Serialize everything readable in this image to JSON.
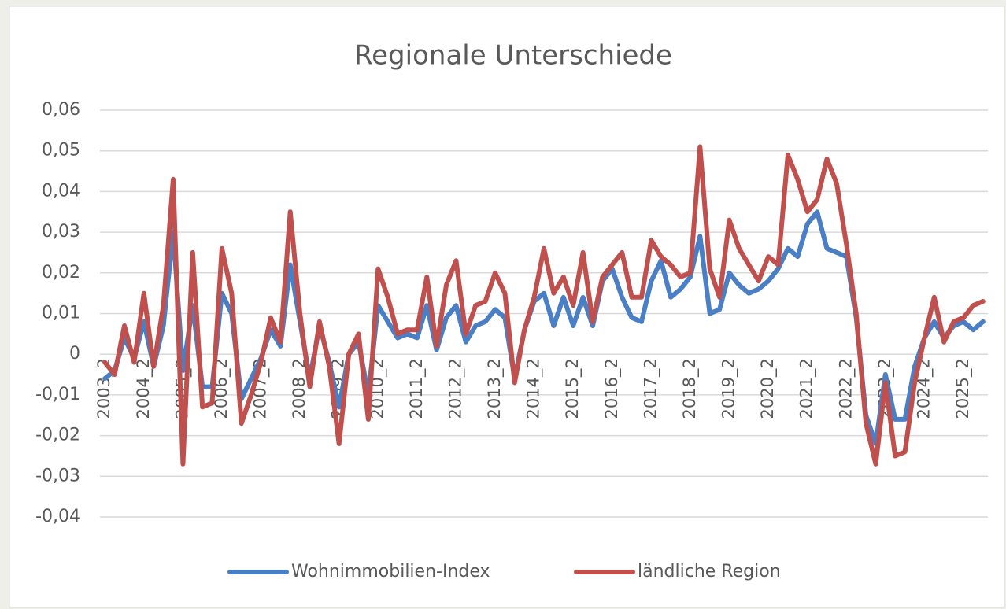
{
  "chart_data": {
    "type": "line",
    "title": "Regionale Unterschiede",
    "categories": [
      "2003_2",
      null,
      null,
      null,
      "2004_2",
      null,
      null,
      null,
      "2005_2",
      null,
      null,
      null,
      "2006_2",
      null,
      null,
      null,
      "2007_2",
      null,
      null,
      null,
      "2008_2",
      null,
      null,
      null,
      "2009_2",
      null,
      null,
      null,
      "2010_2",
      null,
      null,
      null,
      "2011_2",
      null,
      null,
      null,
      "2012_2",
      null,
      null,
      null,
      "2013_2",
      null,
      null,
      null,
      "2014_2",
      null,
      null,
      null,
      "2015_2",
      null,
      null,
      null,
      "2016_2",
      null,
      null,
      null,
      "2017_2",
      null,
      null,
      null,
      "2018_2",
      null,
      null,
      null,
      "2019_2",
      null,
      null,
      null,
      "2020_2",
      null,
      null,
      null,
      "2021_2",
      null,
      null,
      null,
      "2022_2",
      null,
      null,
      null,
      "2023_2",
      null,
      null,
      null,
      "2024_2",
      null,
      null,
      null,
      "2025_2",
      null,
      null
    ],
    "series": [
      {
        "name": "Wohnimmobilien-Index",
        "color": "#4a7fc6",
        "values": [
          -0.006,
          -0.004,
          0.004,
          -0.001,
          0.008,
          -0.003,
          0.007,
          0.03,
          -0.004,
          0.012,
          -0.008,
          -0.008,
          0.015,
          0.01,
          -0.011,
          -0.006,
          -0.001,
          0.006,
          0.002,
          0.022,
          0.008,
          -0.006,
          0.007,
          -0.002,
          -0.013,
          0.0,
          0.003,
          -0.01,
          0.012,
          0.008,
          0.004,
          0.005,
          0.004,
          0.012,
          0.001,
          0.009,
          0.012,
          0.003,
          0.007,
          0.008,
          0.011,
          0.009,
          -0.006,
          0.006,
          0.013,
          0.015,
          0.007,
          0.014,
          0.007,
          0.014,
          0.007,
          0.018,
          0.021,
          0.014,
          0.009,
          0.008,
          0.018,
          0.023,
          0.014,
          0.016,
          0.019,
          0.029,
          0.01,
          0.011,
          0.02,
          0.017,
          0.015,
          0.016,
          0.018,
          0.021,
          0.026,
          0.024,
          0.032,
          0.035,
          0.026,
          0.025,
          0.024,
          0.009,
          -0.015,
          -0.022,
          -0.005,
          -0.016,
          -0.016,
          -0.003,
          0.004,
          0.008,
          0.004,
          0.007,
          0.008,
          0.006,
          0.008
        ]
      },
      {
        "name": "ländliche Region",
        "color": "#c0504d",
        "values": [
          -0.002,
          -0.005,
          0.007,
          -0.002,
          0.015,
          -0.003,
          0.012,
          0.043,
          -0.027,
          0.025,
          -0.013,
          -0.012,
          0.026,
          0.015,
          -0.017,
          -0.01,
          -0.002,
          0.009,
          0.003,
          0.035,
          0.01,
          -0.008,
          0.008,
          -0.003,
          -0.022,
          0.0,
          0.005,
          -0.016,
          0.021,
          0.014,
          0.005,
          0.006,
          0.006,
          0.019,
          0.002,
          0.017,
          0.023,
          0.005,
          0.012,
          0.013,
          0.02,
          0.015,
          -0.007,
          0.006,
          0.014,
          0.026,
          0.015,
          0.019,
          0.012,
          0.025,
          0.008,
          0.019,
          0.022,
          0.025,
          0.014,
          0.014,
          0.028,
          0.024,
          0.022,
          0.019,
          0.02,
          0.051,
          0.021,
          0.014,
          0.033,
          0.026,
          0.022,
          0.018,
          0.024,
          0.022,
          0.049,
          0.043,
          0.035,
          0.038,
          0.048,
          0.042,
          0.027,
          0.01,
          -0.017,
          -0.027,
          -0.007,
          -0.025,
          -0.024,
          -0.007,
          0.004,
          0.014,
          0.003,
          0.008,
          0.009,
          0.012,
          0.013
        ]
      }
    ],
    "ylim": [
      -0.04,
      0.06
    ],
    "yticks": [
      {
        "value": -0.04,
        "label": "-0,04"
      },
      {
        "value": -0.03,
        "label": "-0,03"
      },
      {
        "value": -0.02,
        "label": "-0,02"
      },
      {
        "value": -0.01,
        "label": "-0,01"
      },
      0,
      {
        "value": 0.01,
        "label": "0,01"
      },
      {
        "value": 0.02,
        "label": "0,02"
      },
      {
        "value": 0.03,
        "label": "0,03"
      },
      {
        "value": 0.04,
        "label": "0,04"
      },
      {
        "value": 0.05,
        "label": "0,05"
      },
      {
        "value": 0.06,
        "label": "0,06"
      }
    ],
    "grid": true,
    "legend": "bottom"
  }
}
